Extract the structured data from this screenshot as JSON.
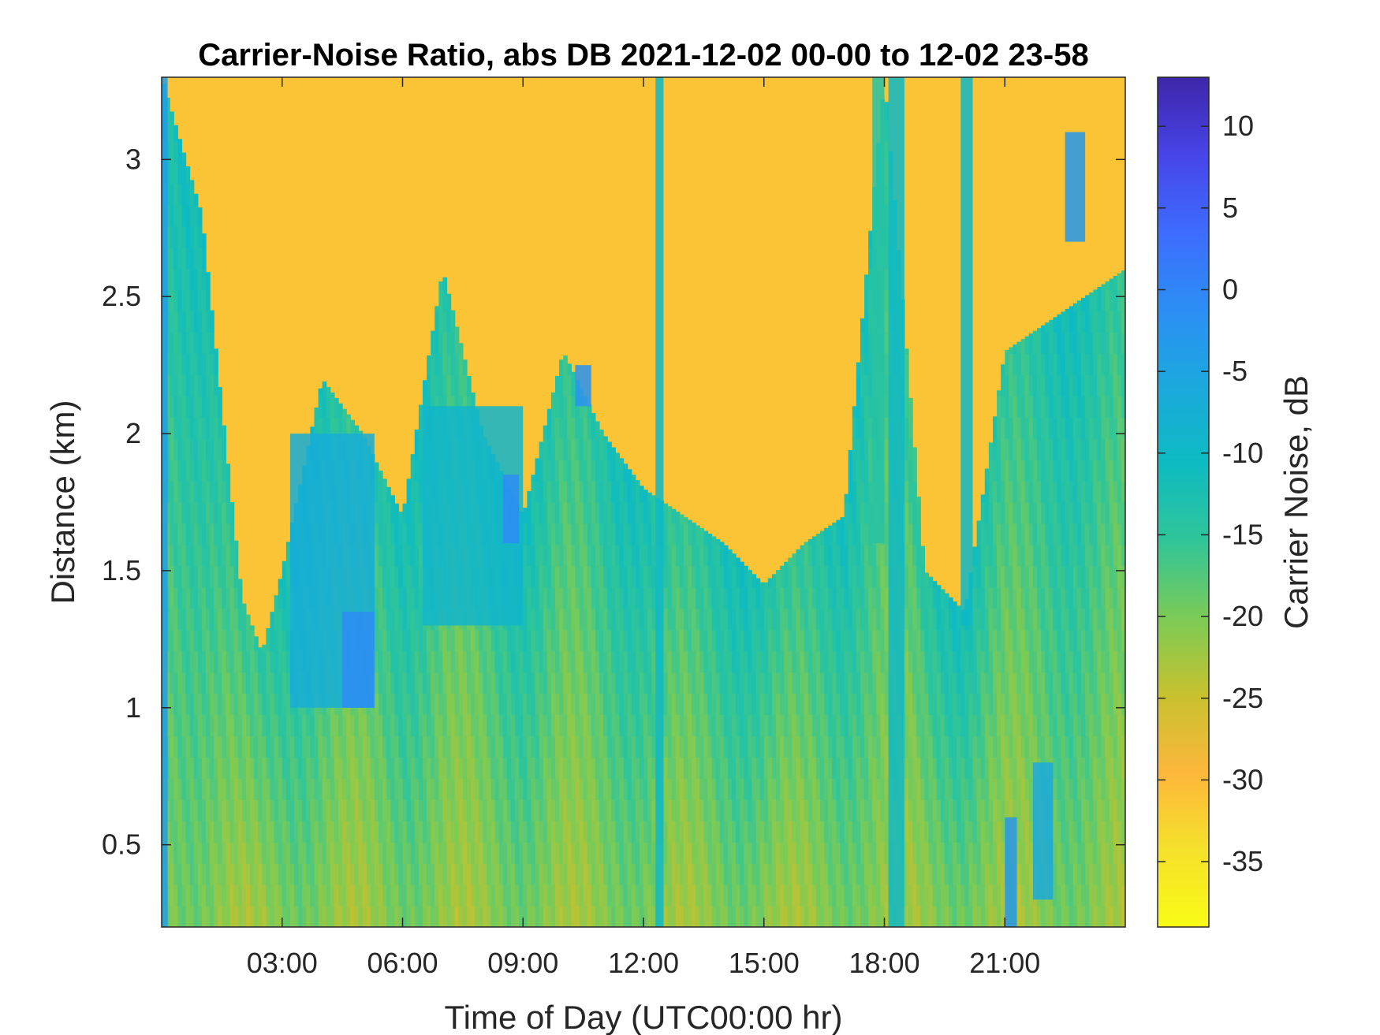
{
  "chart_data": {
    "type": "heatmap",
    "title": "Carrier-Noise Ratio, abs DB 2021-12-02 00-00 to 12-02 23-58",
    "xlabel": "Time of Day (UTC00:00 hr)",
    "ylabel": "Distance (km)",
    "colorbar_label": "Carrier Noise, dB",
    "xlim": [
      0,
      24
    ],
    "ylim": [
      0.2,
      3.3
    ],
    "clim": [
      -39,
      13
    ],
    "x_ticks": [
      {
        "value": 3,
        "label": "03:00"
      },
      {
        "value": 6,
        "label": "06:00"
      },
      {
        "value": 9,
        "label": "09:00"
      },
      {
        "value": 12,
        "label": "12:00"
      },
      {
        "value": 15,
        "label": "15:00"
      },
      {
        "value": 18,
        "label": "18:00"
      },
      {
        "value": 21,
        "label": "21:00"
      }
    ],
    "y_ticks": [
      {
        "value": 0.5,
        "label": "0.5"
      },
      {
        "value": 1,
        "label": "1"
      },
      {
        "value": 1.5,
        "label": "1.5"
      },
      {
        "value": 2,
        "label": "2"
      },
      {
        "value": 2.5,
        "label": "2.5"
      },
      {
        "value": 3,
        "label": "3"
      }
    ],
    "colorbar_ticks": [
      {
        "value": 10,
        "label": "10"
      },
      {
        "value": 5,
        "label": "5"
      },
      {
        "value": 0,
        "label": "0"
      },
      {
        "value": -5,
        "label": "-5"
      },
      {
        "value": -10,
        "label": "-10"
      },
      {
        "value": -15,
        "label": "-15"
      },
      {
        "value": -20,
        "label": "-20"
      },
      {
        "value": -25,
        "label": "-25"
      },
      {
        "value": -30,
        "label": "-30"
      },
      {
        "value": -35,
        "label": "-35"
      }
    ],
    "colormap": [
      "#3e26a8",
      "#4744e8",
      "#3d6cfe",
      "#2c8ef4",
      "#1ba9dd",
      "#0dbbc1",
      "#30c599",
      "#7bcb56",
      "#c7c12e",
      "#fdb73b",
      "#f5e12b",
      "#f9fb15"
    ],
    "background_level": -31,
    "boundary_height_by_hour": {
      "x": [
        0,
        1,
        2,
        2.5,
        3,
        4,
        5,
        6,
        7,
        8,
        9,
        10,
        11,
        12,
        13,
        14,
        15,
        16,
        17,
        18,
        19,
        20,
        21,
        22,
        23,
        24
      ],
      "y": [
        3.3,
        2.8,
        1.4,
        1.2,
        1.5,
        2.2,
        2.0,
        1.7,
        2.6,
        2.0,
        1.7,
        2.3,
        2.0,
        1.8,
        1.7,
        1.6,
        1.45,
        1.6,
        1.7,
        3.3,
        1.5,
        1.35,
        2.3,
        2.4,
        2.5,
        2.6
      ]
    },
    "low_level_bands": [
      {
        "t0": 0.0,
        "t1": 0.15,
        "h0": 0.2,
        "h1": 3.3,
        "value": -4
      },
      {
        "t0": 3.2,
        "t1": 5.3,
        "h0": 1.0,
        "h1": 2.0,
        "value": -7
      },
      {
        "t0": 4.5,
        "t1": 5.3,
        "h0": 1.0,
        "h1": 1.35,
        "value": -1
      },
      {
        "t0": 6.5,
        "t1": 9.0,
        "h0": 1.3,
        "h1": 2.1,
        "value": -9
      },
      {
        "t0": 8.5,
        "t1": 8.9,
        "h0": 1.6,
        "h1": 1.85,
        "value": -1
      },
      {
        "t0": 10.3,
        "t1": 10.7,
        "h0": 2.1,
        "h1": 2.25,
        "value": -2
      },
      {
        "t0": 12.3,
        "t1": 12.5,
        "h0": 0.2,
        "h1": 3.3,
        "value": -10
      },
      {
        "t0": 17.7,
        "t1": 18.0,
        "h0": 1.6,
        "h1": 3.3,
        "value": -14
      },
      {
        "t0": 18.1,
        "t1": 18.5,
        "h0": 0.2,
        "h1": 3.3,
        "value": -10
      },
      {
        "t0": 19.9,
        "t1": 20.2,
        "h0": 1.3,
        "h1": 3.3,
        "value": -10
      },
      {
        "t0": 21.0,
        "t1": 21.3,
        "h0": 0.2,
        "h1": 0.6,
        "value": -3
      },
      {
        "t0": 21.7,
        "t1": 22.2,
        "h0": 0.3,
        "h1": 0.8,
        "value": -6
      },
      {
        "t0": 22.5,
        "t1": 23.0,
        "h0": 2.7,
        "h1": 3.1,
        "value": -3
      }
    ]
  }
}
